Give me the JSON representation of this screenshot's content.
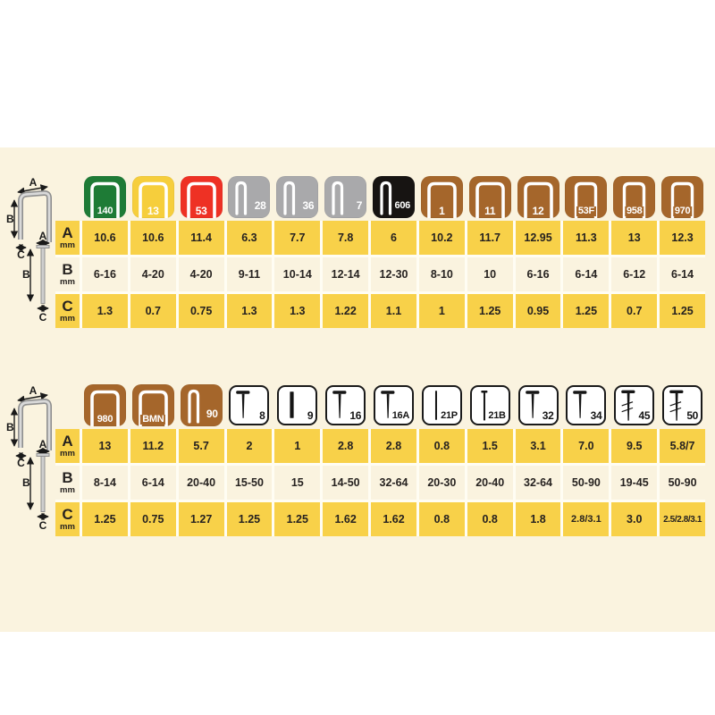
{
  "page": {
    "background": "#FFFFFF",
    "panel_background": "#FAF3DF"
  },
  "colors": {
    "cell_yellow": "#F8D149",
    "row_cream": "#FAF3DF",
    "grid_gap": "#FFFDF3",
    "text": "#262220",
    "icon_green": "#1E7B36",
    "icon_yellow": "#F6CE3C",
    "icon_red": "#EE3124",
    "icon_gray": "#A9A9AB",
    "icon_black": "#171412",
    "icon_brown": "#A5662B",
    "nail_icon_bg": "#FFFFFF",
    "nail_icon_ink": "#151515"
  },
  "diagram_labels": {
    "a": "A",
    "b": "B",
    "c": "C"
  },
  "unit": "mm",
  "tables": [
    {
      "name": "staple-sizes-top",
      "rows": [
        {
          "key": "a",
          "letter": "A",
          "unit": "mm"
        },
        {
          "key": "b",
          "letter": "B",
          "unit": "mm"
        },
        {
          "key": "c",
          "letter": "C",
          "unit": "mm"
        }
      ],
      "columns": [
        {
          "id": "140",
          "icon": "staple-wide",
          "bg": "#1E7B36",
          "ink": "#FFFFFF",
          "a": "10.6",
          "b": "6-16",
          "c": "1.3"
        },
        {
          "id": "13",
          "icon": "staple-wide",
          "bg": "#F6CE3C",
          "ink": "#FFFFFF",
          "a": "10.6",
          "b": "4-20",
          "c": "0.7"
        },
        {
          "id": "53",
          "icon": "staple-wide",
          "bg": "#EE3124",
          "ink": "#FFFFFF",
          "a": "11.4",
          "b": "4-20",
          "c": "0.75"
        },
        {
          "id": "28",
          "icon": "staple-narrow",
          "bg": "#A9A9AB",
          "ink": "#FFFFFF",
          "a": "6.3",
          "b": "9-11",
          "c": "1.3"
        },
        {
          "id": "36",
          "icon": "staple-narrow",
          "bg": "#A9A9AB",
          "ink": "#FFFFFF",
          "a": "7.7",
          "b": "10-14",
          "c": "1.3"
        },
        {
          "id": "7",
          "icon": "staple-narrow",
          "bg": "#A9A9AB",
          "ink": "#FFFFFF",
          "a": "7.8",
          "b": "12-14",
          "c": "1.22"
        },
        {
          "id": "606",
          "icon": "staple-narrow",
          "bg": "#171412",
          "ink": "#FFFFFF",
          "a": "6",
          "b": "12-30",
          "c": "1.1"
        },
        {
          "id": "1",
          "icon": "staple-wide",
          "bg": "#A5662B",
          "ink": "#FFFFFF",
          "a": "10.2",
          "b": "8-10",
          "c": "1"
        },
        {
          "id": "11",
          "icon": "staple-wide",
          "bg": "#A5662B",
          "ink": "#FFFFFF",
          "a": "11.7",
          "b": "10",
          "c": "1.25"
        },
        {
          "id": "12",
          "icon": "staple-wide",
          "bg": "#A5662B",
          "ink": "#FFFFFF",
          "a": "12.95",
          "b": "6-16",
          "c": "0.95"
        },
        {
          "id": "53F",
          "icon": "staple-medium",
          "bg": "#A5662B",
          "ink": "#FFFFFF",
          "a": "11.3",
          "b": "6-14",
          "c": "1.25"
        },
        {
          "id": "958",
          "icon": "staple-medium",
          "bg": "#A5662B",
          "ink": "#FFFFFF",
          "a": "13",
          "b": "6-12",
          "c": "0.7"
        },
        {
          "id": "970",
          "icon": "staple-medium",
          "bg": "#A5662B",
          "ink": "#FFFFFF",
          "a": "12.3",
          "b": "6-14",
          "c": "1.25"
        }
      ]
    },
    {
      "name": "staple-nail-sizes-bottom",
      "rows": [
        {
          "key": "a",
          "letter": "A",
          "unit": "mm"
        },
        {
          "key": "b",
          "letter": "B",
          "unit": "mm"
        },
        {
          "key": "c",
          "letter": "C",
          "unit": "mm"
        }
      ],
      "columns": [
        {
          "id": "980",
          "icon": "staple-wide",
          "bg": "#A5662B",
          "ink": "#FFFFFF",
          "a": "13",
          "b": "8-14",
          "c": "1.25"
        },
        {
          "id": "BMN",
          "icon": "staple-wide",
          "bg": "#A5662B",
          "ink": "#FFFFFF",
          "a": "11.2",
          "b": "6-14",
          "c": "0.75"
        },
        {
          "id": "90",
          "icon": "staple-narrow",
          "bg": "#A5662B",
          "ink": "#FFFFFF",
          "a": "5.7",
          "b": "20-40",
          "c": "1.27"
        },
        {
          "id": "8",
          "icon": "nail-t",
          "bg": "#FFFFFF",
          "ink": "#151515",
          "a": "2",
          "b": "15-50",
          "c": "1.25"
        },
        {
          "id": "9",
          "icon": "pin-thick",
          "bg": "#FFFFFF",
          "ink": "#151515",
          "a": "1",
          "b": "15",
          "c": "1.25"
        },
        {
          "id": "16",
          "icon": "nail-t",
          "bg": "#FFFFFF",
          "ink": "#151515",
          "a": "2.8",
          "b": "14-50",
          "c": "1.62"
        },
        {
          "id": "16A",
          "icon": "nail-t",
          "bg": "#FFFFFF",
          "ink": "#151515",
          "a": "2.8",
          "b": "32-64",
          "c": "1.62"
        },
        {
          "id": "21P",
          "icon": "pin-thin",
          "bg": "#FFFFFF",
          "ink": "#151515",
          "a": "0.8",
          "b": "20-30",
          "c": "0.8"
        },
        {
          "id": "21B",
          "icon": "brad",
          "bg": "#FFFFFF",
          "ink": "#151515",
          "a": "1.5",
          "b": "20-40",
          "c": "0.8"
        },
        {
          "id": "32",
          "icon": "nail-t",
          "bg": "#FFFFFF",
          "ink": "#151515",
          "a": "3.1",
          "b": "32-64",
          "c": "1.8"
        },
        {
          "id": "34",
          "icon": "nail-t",
          "bg": "#FFFFFF",
          "ink": "#151515",
          "a": "7.0",
          "b": "50-90",
          "c": "2.8/3.1"
        },
        {
          "id": "45",
          "icon": "nail-threaded",
          "bg": "#FFFFFF",
          "ink": "#151515",
          "a": "9.5",
          "b": "19-45",
          "c": "3.0"
        },
        {
          "id": "50",
          "icon": "nail-threaded",
          "bg": "#FFFFFF",
          "ink": "#151515",
          "a": "5.8/7",
          "b": "50-90",
          "c": "2.5/2.8/3.1"
        }
      ]
    }
  ]
}
